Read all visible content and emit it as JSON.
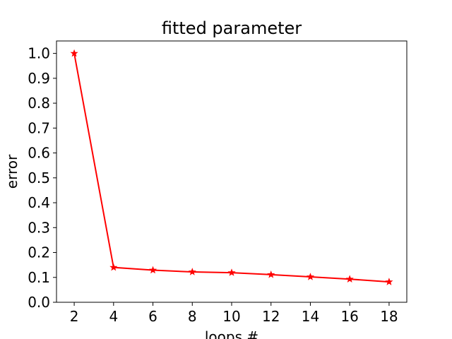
{
  "chart_data": {
    "type": "line",
    "title": "fitted parameter",
    "xlabel": "loops #",
    "ylabel": "error",
    "x": [
      2,
      4,
      6,
      8,
      10,
      12,
      14,
      16,
      18
    ],
    "series": [
      {
        "values": [
          1.0,
          0.14,
          0.129,
          0.122,
          0.119,
          0.111,
          0.102,
          0.093,
          0.082
        ],
        "color": "#ff0000",
        "marker": "star"
      }
    ],
    "xlim": [
      1.1,
      18.9
    ],
    "ylim": [
      0.0,
      1.05
    ],
    "xticks": [
      2,
      4,
      6,
      8,
      10,
      12,
      14,
      16,
      18
    ],
    "xtick_labels": [
      "2",
      "4",
      "6",
      "8",
      "10",
      "12",
      "14",
      "16",
      "18"
    ],
    "yticks": [
      0.0,
      0.1,
      0.2,
      0.3,
      0.4,
      0.5,
      0.6,
      0.7,
      0.8,
      0.9,
      1.0
    ],
    "ytick_labels": [
      "0.0",
      "0.1",
      "0.2",
      "0.3",
      "0.4",
      "0.5",
      "0.6",
      "0.7",
      "0.8",
      "0.9",
      "1.0"
    ],
    "grid": false,
    "legend": "none"
  }
}
